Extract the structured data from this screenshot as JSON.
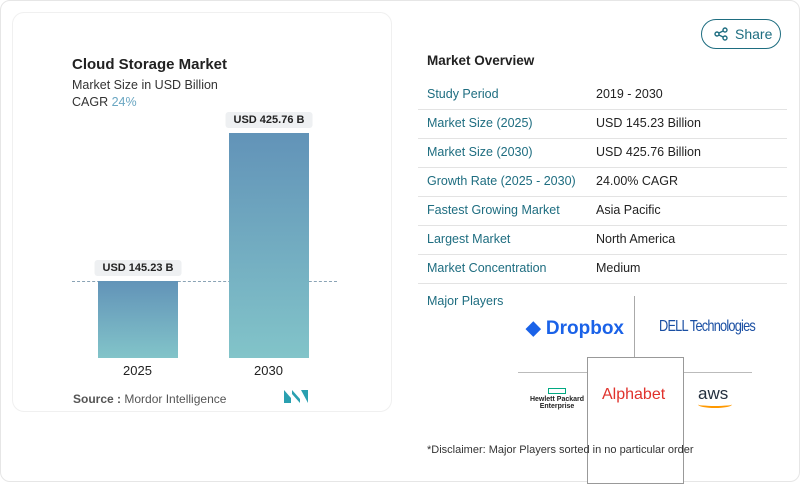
{
  "chart_data": {
    "type": "bar",
    "title": "Cloud Storage Market",
    "subtitle": "Market Size in USD Billion",
    "cagr_label": "CAGR",
    "cagr_value": "24%",
    "categories": [
      "2025",
      "2030"
    ],
    "values": [
      145.23,
      425.76
    ],
    "data_labels": [
      "USD 145.23 B",
      "USD 425.76 B"
    ],
    "colors": {
      "top": "#6293b8",
      "bottom": "#82c4c9"
    }
  },
  "source": {
    "label": "Source :",
    "value": "Mordor Intelligence"
  },
  "share": {
    "label": "Share",
    "icon": "share-icon"
  },
  "overview": {
    "title": "Market Overview",
    "rows": [
      {
        "k": "Study Period",
        "v": "2019 - 2030"
      },
      {
        "k": "Market Size (2025)",
        "v": "USD 145.23 Billion"
      },
      {
        "k": "Market Size (2030)",
        "v": "USD 425.76 Billion"
      },
      {
        "k": "Growth Rate (2025 - 2030)",
        "v": "24.00% CAGR"
      },
      {
        "k": "Fastest Growing Market",
        "v": "Asia Pacific"
      },
      {
        "k": "Largest Market",
        "v": "North America"
      },
      {
        "k": "Market Concentration",
        "v": "Medium"
      }
    ]
  },
  "players": {
    "title": "Major Players",
    "logos": [
      "Dropbox",
      "DELL Technologies",
      "Hewlett Packard Enterprise",
      "Alphabet",
      "aws"
    ]
  },
  "disclaimer": "*Disclaimer: Major Players sorted in no particular order"
}
